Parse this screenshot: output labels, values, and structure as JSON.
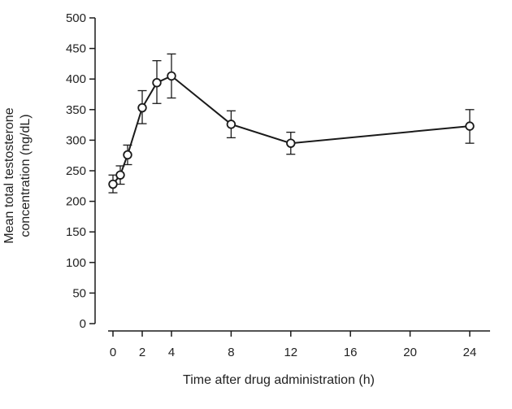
{
  "chart_data": {
    "type": "line",
    "title": "",
    "xlabel": "Time after drug administration (h)",
    "ylabel": [
      "Mean total testosterone",
      "concentration (ng/dL)"
    ],
    "ylim": [
      0,
      500
    ],
    "xlim": [
      0,
      24
    ],
    "y_ticks": [
      0,
      50,
      100,
      150,
      200,
      250,
      300,
      350,
      400,
      450,
      500
    ],
    "x_ticks": [
      0,
      2,
      4,
      8,
      12,
      16,
      20,
      24
    ],
    "grid": false,
    "legend": "none",
    "series": [
      {
        "points": [
          {
            "x": 0.0,
            "y": 228,
            "err_low": 214,
            "err_high": 243
          },
          {
            "x": 0.5,
            "y": 243,
            "err_low": 228,
            "err_high": 258
          },
          {
            "x": 1.0,
            "y": 276,
            "err_low": 260,
            "err_high": 292
          },
          {
            "x": 2.0,
            "y": 353,
            "err_low": 327,
            "err_high": 381
          },
          {
            "x": 3.0,
            "y": 394,
            "err_low": 360,
            "err_high": 430
          },
          {
            "x": 4.0,
            "y": 405,
            "err_low": 369,
            "err_high": 441
          },
          {
            "x": 8.0,
            "y": 326,
            "err_low": 304,
            "err_high": 348
          },
          {
            "x": 12.0,
            "y": 295,
            "err_low": 277,
            "err_high": 313
          },
          {
            "x": 24.0,
            "y": 323,
            "err_low": 295,
            "err_high": 350
          }
        ]
      }
    ],
    "style": {
      "line_color": "#1a1a1a",
      "marker_fill": "#ffffff"
    }
  }
}
